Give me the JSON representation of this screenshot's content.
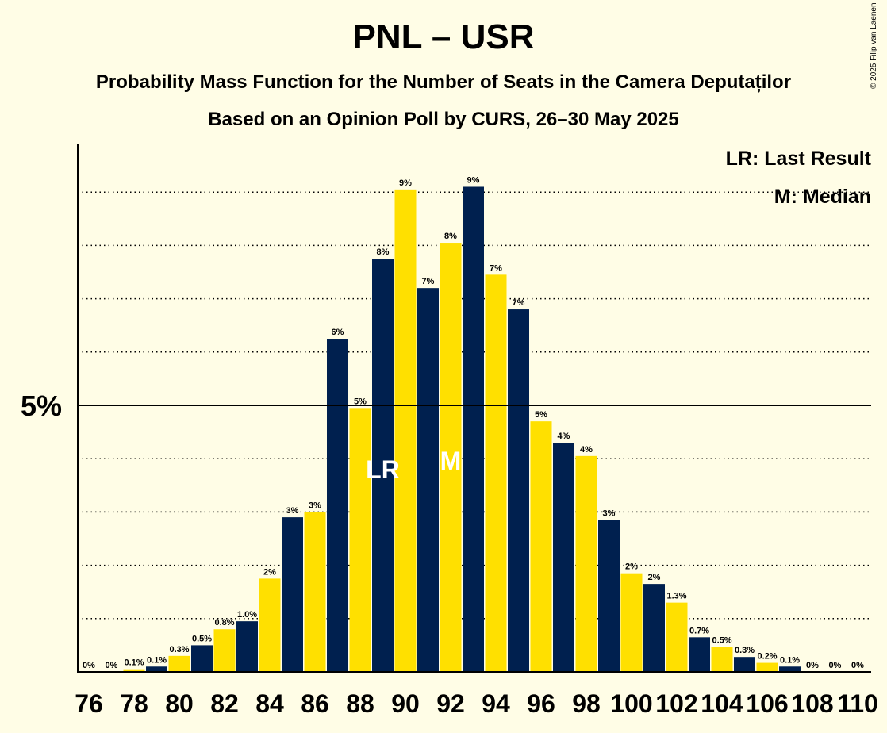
{
  "header": {
    "title": "PNL – USR",
    "subtitle": "Probability Mass Function for the Number of Seats in the Camera Deputaților",
    "subtitle2": "Based on an Opinion Poll by CURS, 26–30 May 2025",
    "copyright": "© 2025 Filip van Laenen"
  },
  "legend": {
    "last_result": "LR: Last Result",
    "median": "M: Median"
  },
  "chart_data": {
    "type": "bar",
    "title": "PNL – USR",
    "x": [
      76,
      77,
      78,
      79,
      80,
      81,
      82,
      83,
      84,
      85,
      86,
      87,
      88,
      89,
      90,
      91,
      92,
      93,
      94,
      95,
      96,
      97,
      98,
      99,
      100,
      101,
      102,
      103,
      104,
      105,
      106,
      107,
      108,
      109,
      110
    ],
    "values": [
      0.0,
      0.0,
      0.05,
      0.1,
      0.3,
      0.5,
      0.8,
      0.95,
      1.75,
      2.9,
      3.0,
      6.25,
      4.95,
      7.75,
      9.05,
      7.2,
      8.05,
      9.1,
      7.45,
      6.8,
      4.7,
      4.3,
      4.05,
      2.85,
      1.85,
      1.65,
      1.3,
      0.65,
      0.47,
      0.28,
      0.17,
      0.1,
      0.0,
      0.0,
      0.0
    ],
    "data_labels": [
      "0%",
      "0%",
      "0.1%",
      "0.1%",
      "0.3%",
      "0.5%",
      "0.8%",
      "1.0%",
      "2%",
      "3%",
      "3%",
      "6%",
      "5%",
      "8%",
      "9%",
      "7%",
      "8%",
      "9%",
      "7%",
      "7%",
      "5%",
      "4%",
      "4%",
      "3%",
      "2%",
      "2%",
      "1.3%",
      "0.7%",
      "0.5%",
      "0.3%",
      "0.2%",
      "0.1%",
      "0%",
      "0%",
      "0%"
    ],
    "x_tick_labels": [
      "76",
      "78",
      "80",
      "82",
      "84",
      "86",
      "88",
      "90",
      "92",
      "94",
      "96",
      "98",
      "100",
      "102",
      "104",
      "106",
      "108",
      "110"
    ],
    "y_tick_label": "5%",
    "y_tick_value": 5,
    "ylim": [
      0,
      9.9
    ],
    "grid_values": [
      1,
      2,
      3,
      4,
      6,
      7,
      8,
      9
    ],
    "last_result_seat": 89,
    "last_result_label": "LR",
    "median_seat": 92,
    "median_label": "M",
    "colors": {
      "odd": "#00204F",
      "even": "#FFE000",
      "background": "#FFFDE6",
      "marker_text": "#FFFFFF"
    }
  }
}
